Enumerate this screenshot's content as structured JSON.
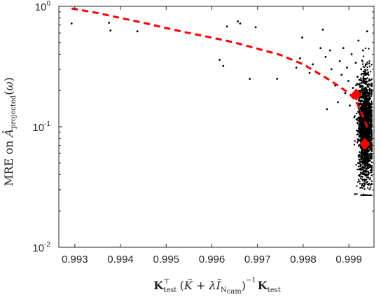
{
  "chart_data": {
    "type": "scatter",
    "xlabel": "K_test^T (K̃ + λ Ĩ_{N_cam})^{-1} K_test",
    "ylabel": "MRE on Â_projected(ω)",
    "x_range": [
      0.99265,
      0.99955
    ],
    "y_range": [
      0.01,
      1.0
    ],
    "y_scale": "log",
    "x_ticks": [
      "0.993",
      "0.994",
      "0.995",
      "0.996",
      "0.997",
      "0.998",
      "0.999"
    ],
    "x_tick_values": [
      0.993,
      0.994,
      0.995,
      0.996,
      0.997,
      0.998,
      0.999
    ],
    "y_ticks": [
      {
        "value": 1.0,
        "base": "10",
        "exp": "0"
      },
      {
        "value": 0.1,
        "base": "10",
        "exp": "-1"
      },
      {
        "value": 0.01,
        "base": "10",
        "exp": "-2"
      }
    ],
    "grid": false,
    "colors": {
      "points": "#000000",
      "trend": "#ff0000",
      "highlight": "#ff0000",
      "axis": "#262626"
    },
    "series": [
      {
        "kind": "scatter-sparse",
        "points": [
          [
            0.99293,
            0.72
          ],
          [
            0.99375,
            0.73
          ],
          [
            0.99378,
            0.63
          ],
          [
            0.99437,
            0.62
          ],
          [
            0.99617,
            0.36
          ],
          [
            0.99625,
            0.32
          ],
          [
            0.99633,
            0.68
          ],
          [
            0.99657,
            0.75
          ],
          [
            0.99662,
            0.72
          ],
          [
            0.99683,
            0.25
          ],
          [
            0.99696,
            0.67
          ],
          [
            0.99743,
            0.25
          ],
          [
            0.99785,
            0.31
          ],
          [
            0.99793,
            0.37
          ],
          [
            0.99798,
            0.55
          ],
          [
            0.99814,
            0.28
          ],
          [
            0.99821,
            0.33
          ],
          [
            0.99838,
            0.45
          ],
          [
            0.99843,
            0.64
          ],
          [
            0.99849,
            0.38
          ],
          [
            0.99852,
            0.14
          ],
          [
            0.99859,
            0.43
          ],
          [
            0.99862,
            0.3
          ],
          [
            0.9987,
            0.22
          ],
          [
            0.99876,
            0.16
          ],
          [
            0.9988,
            0.35
          ],
          [
            0.99884,
            0.27
          ],
          [
            0.99888,
            0.45
          ],
          [
            0.99892,
            0.19
          ],
          [
            0.99896,
            0.31
          ],
          [
            0.99899,
            0.24
          ],
          [
            0.99902,
            0.15
          ],
          [
            0.99906,
            0.4
          ],
          [
            0.99909,
            0.21
          ],
          [
            0.99912,
            0.12
          ],
          [
            0.99915,
            0.34
          ],
          [
            0.99917,
            0.17
          ],
          [
            0.99919,
            0.26
          ],
          [
            0.99921,
            0.52
          ],
          [
            0.99923,
            0.1
          ],
          [
            0.99925,
            0.2
          ],
          [
            0.99927,
            0.3
          ],
          [
            0.99929,
            0.14
          ],
          [
            0.99931,
            0.43
          ],
          [
            0.99933,
            0.09
          ],
          [
            0.99934,
            0.23
          ],
          [
            0.99936,
            0.07
          ],
          [
            0.99937,
            0.33
          ],
          [
            0.99938,
            0.16
          ],
          [
            0.99939,
            0.05
          ],
          [
            0.9994,
            0.62
          ],
          [
            0.99941,
            0.12
          ],
          [
            0.99942,
            0.04
          ],
          [
            0.99943,
            0.27
          ],
          [
            0.99944,
            0.09
          ],
          [
            0.99945,
            0.19
          ]
        ]
      },
      {
        "kind": "scatter-dense-cluster",
        "count": 1800,
        "seed": 7,
        "x_center": 0.99936,
        "x_spread": 8e-05,
        "x_min": 0.99885,
        "x_max": 0.9995,
        "y_log_center": -1.02,
        "y_log_spread": 0.22,
        "y_min": 0.027,
        "y_max": 0.7
      },
      {
        "kind": "line-dashed",
        "x": [
          0.99293,
          0.9935,
          0.994,
          0.9945,
          0.995,
          0.9955,
          0.996,
          0.9965,
          0.997,
          0.9975,
          0.998,
          0.9985,
          0.9988,
          0.999,
          0.99915,
          0.9993,
          0.9994,
          0.99945
        ],
        "y": [
          0.96,
          0.88,
          0.8,
          0.73,
          0.66,
          0.6,
          0.55,
          0.5,
          0.445,
          0.395,
          0.33,
          0.255,
          0.215,
          0.19,
          0.165,
          0.125,
          0.1,
          0.095
        ]
      },
      {
        "kind": "highlight",
        "points": [
          [
            0.99916,
            0.185
          ],
          [
            0.99935,
            0.072
          ]
        ]
      }
    ]
  }
}
